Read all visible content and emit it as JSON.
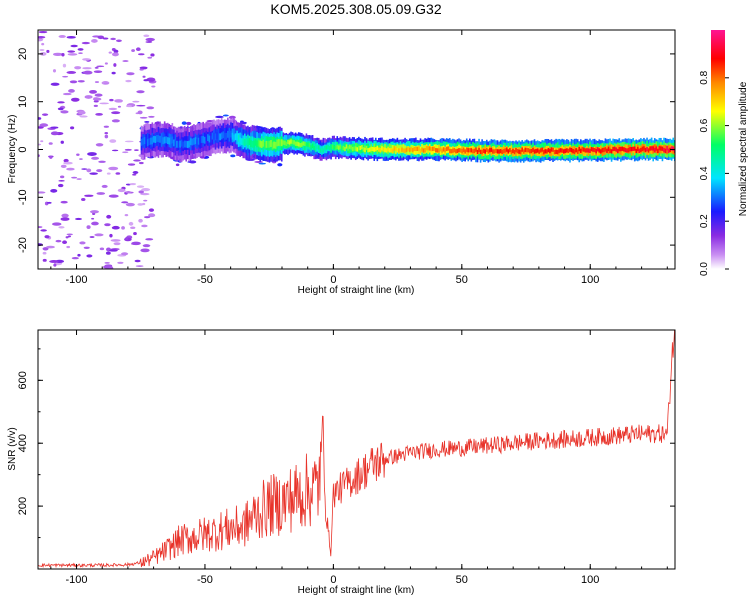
{
  "figure_title": "KOM5.2025.308.05.09.G32",
  "colors": {
    "snr_line": "#e8332a",
    "axis": "#000000",
    "colormap": [
      "#ffffff",
      "#c98ef2",
      "#8a2be2",
      "#1a1aff",
      "#00e5ff",
      "#00ff66",
      "#ffff00",
      "#ff8800",
      "#ff0000",
      "#ff1493"
    ]
  },
  "chart_data": [
    {
      "type": "heatmap",
      "title": "KOM5.2025.308.05.09.G32",
      "xlabel": "Height of straight line (km)",
      "ylabel": "Frequency (Hz)",
      "xlim": [
        -115,
        133
      ],
      "ylim": [
        -25,
        25
      ],
      "xticks": [
        -100,
        -50,
        0,
        50,
        100
      ],
      "yticks": [
        -20,
        -10,
        0,
        10,
        20
      ],
      "colorbar": {
        "label": "Normalized spectral amplitude",
        "range": [
          0,
          1
        ],
        "ticks": [
          "0.0",
          "0.2",
          "0.4",
          "0.6",
          "0.8"
        ]
      },
      "ridge": {
        "x": [
          -75,
          -70,
          -65,
          -60,
          -55,
          -50,
          -45,
          -40,
          -35,
          -30,
          -25,
          -20,
          -15,
          -10,
          -5,
          0,
          10,
          20,
          40,
          60,
          80,
          100,
          120,
          133
        ],
        "frequency": [
          1.5,
          2.0,
          2.2,
          1.0,
          1.5,
          2.2,
          2.8,
          3.0,
          1.6,
          1.2,
          1.0,
          1.3,
          1.4,
          0.8,
          0.0,
          0.5,
          0.2,
          0.0,
          0.0,
          -0.3,
          -0.3,
          -0.2,
          0.0,
          0.0
        ],
        "amplitude": [
          0.28,
          0.3,
          0.32,
          0.3,
          0.3,
          0.28,
          0.3,
          0.33,
          0.45,
          0.55,
          0.58,
          0.6,
          0.6,
          0.55,
          0.45,
          0.55,
          0.62,
          0.7,
          0.78,
          0.85,
          0.85,
          0.88,
          0.9,
          0.92
        ]
      },
      "noise_region_x": [
        -115,
        -75
      ]
    },
    {
      "type": "line",
      "xlabel": "Height of straight line (km)",
      "ylabel": "SNR (v/v)",
      "xlim": [
        -115,
        133
      ],
      "ylim": [
        0,
        760
      ],
      "xticks": [
        -100,
        -50,
        0,
        50,
        100
      ],
      "yticks": [
        200,
        400,
        600
      ],
      "series": [
        {
          "name": "SNR",
          "x": [
            -115,
            -100,
            -90,
            -80,
            -75,
            -70,
            -65,
            -60,
            -55,
            -50,
            -45,
            -40,
            -35,
            -30,
            -25,
            -20,
            -15,
            -10,
            -6,
            -4,
            -3,
            -1,
            0,
            5,
            10,
            15,
            20,
            25,
            30,
            40,
            50,
            60,
            70,
            80,
            90,
            100,
            110,
            120,
            130,
            132,
            133
          ],
          "values": [
            12,
            12,
            12,
            14,
            20,
            35,
            60,
            90,
            100,
            110,
            120,
            130,
            135,
            175,
            200,
            210,
            230,
            250,
            260,
            440,
            190,
            50,
            240,
            270,
            300,
            330,
            350,
            360,
            370,
            380,
            385,
            392,
            400,
            408,
            412,
            418,
            424,
            430,
            430,
            700,
            760
          ]
        }
      ]
    }
  ]
}
